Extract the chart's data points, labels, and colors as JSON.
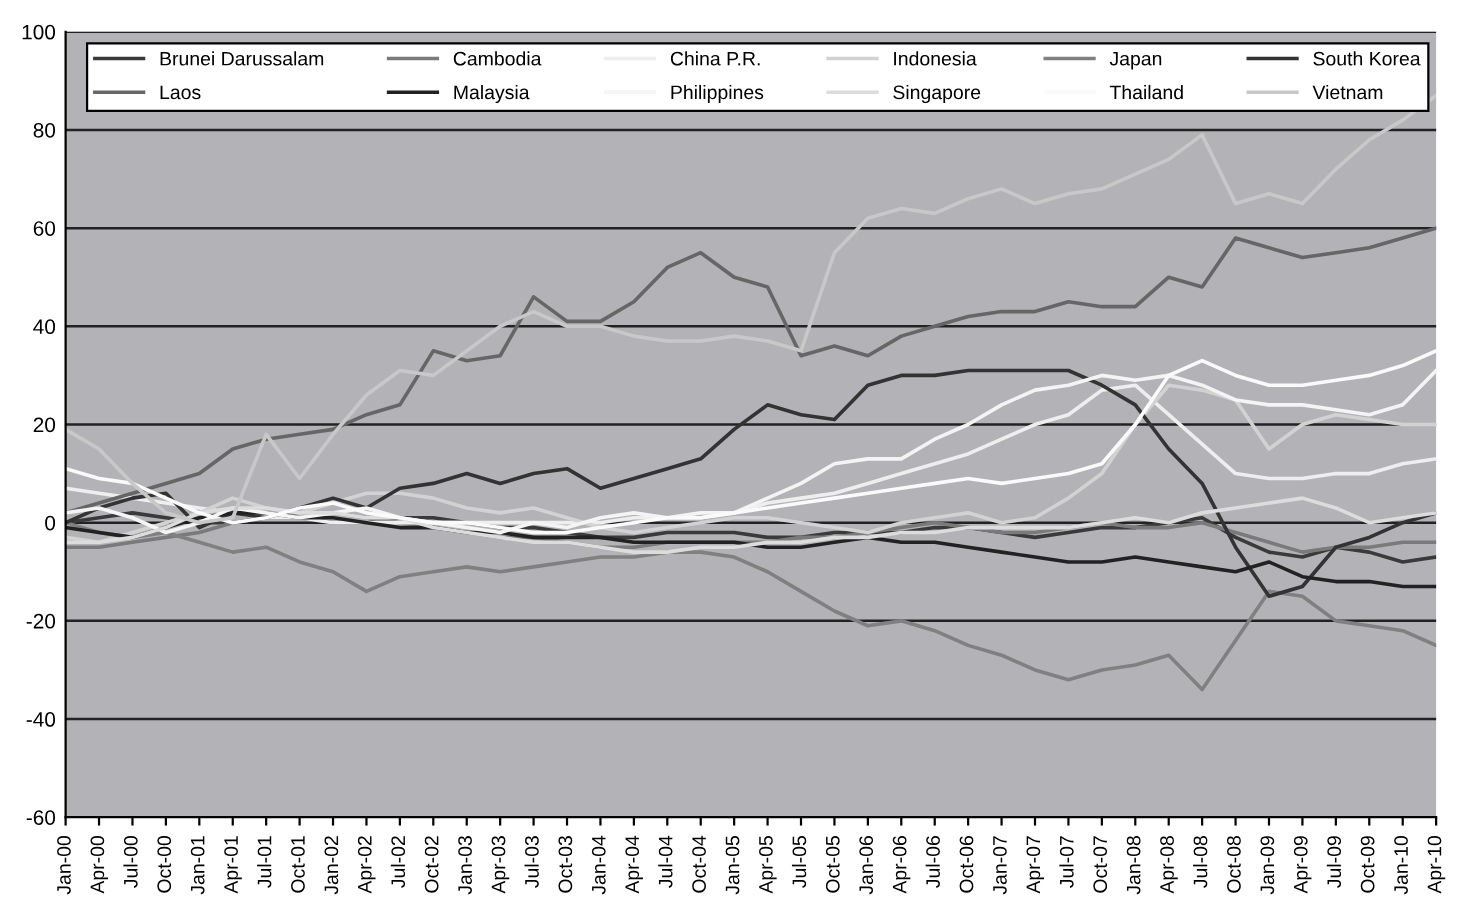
{
  "chart_data": {
    "type": "line",
    "categories": [
      "Jan-00",
      "Apr-00",
      "Jul-00",
      "Oct-00",
      "Jan-01",
      "Apr-01",
      "Jul-01",
      "Oct-01",
      "Jan-02",
      "Apr-02",
      "Jul-02",
      "Oct-02",
      "Jan-03",
      "Apr-03",
      "Jul-03",
      "Oct-03",
      "Jan-04",
      "Apr-04",
      "Jul-04",
      "Oct-04",
      "Jan-05",
      "Apr-05",
      "Jul-05",
      "Oct-05",
      "Jan-06",
      "Apr-06",
      "Jul-06",
      "Oct-06",
      "Jan-07",
      "Apr-07",
      "Jul-07",
      "Oct-07",
      "Jan-08",
      "Apr-08",
      "Jul-08",
      "Oct-08",
      "Jan-09",
      "Apr-09",
      "Jul-09",
      "Oct-09",
      "Jan-10",
      "Apr-10"
    ],
    "series": [
      {
        "name": "Brunei Darussalam",
        "color": "#3a3a3a",
        "values": [
          0,
          1,
          2,
          1,
          0,
          0,
          1,
          1,
          0,
          0,
          1,
          1,
          0,
          -1,
          -1,
          -2,
          -3,
          -3,
          -2,
          -2,
          -2,
          -3,
          -3,
          -2,
          -2,
          -2,
          -1,
          -1,
          -2,
          -3,
          -2,
          -1,
          -1,
          0,
          1,
          -3,
          -6,
          -7,
          -5,
          -6,
          -8,
          -7
        ]
      },
      {
        "name": "Cambodia",
        "color": "#7a7a7a",
        "values": [
          -5,
          -5,
          -4,
          -3,
          -2,
          0,
          1,
          2,
          2,
          1,
          0,
          -1,
          -2,
          -3,
          -3,
          -4,
          -5,
          -5,
          -4,
          -4,
          -4,
          -4,
          -3,
          -3,
          -2,
          -1,
          0,
          -1,
          -2,
          -2,
          -1,
          0,
          -1,
          -1,
          0,
          -2,
          -4,
          -6,
          -5,
          -5,
          -4,
          -4
        ]
      },
      {
        "name": "China P.R.",
        "color": "#eeeeee",
        "values": [
          7,
          6,
          5,
          4,
          3,
          2,
          1,
          1,
          0,
          0,
          0,
          0,
          0,
          0,
          0,
          0,
          0,
          1,
          1,
          1,
          2,
          4,
          5,
          6,
          8,
          10,
          12,
          14,
          17,
          20,
          22,
          27,
          28,
          22,
          16,
          10,
          9,
          9,
          10,
          10,
          12,
          13
        ]
      },
      {
        "name": "Indonesia",
        "color": "#d2d2d2",
        "values": [
          -3,
          -4,
          -2,
          0,
          2,
          5,
          3,
          2,
          4,
          6,
          6,
          5,
          3,
          2,
          3,
          1,
          -1,
          -2,
          -1,
          0,
          1,
          1,
          0,
          -1,
          -2,
          0,
          1,
          2,
          0,
          1,
          5,
          10,
          20,
          28,
          27,
          25,
          15,
          20,
          22,
          21,
          20,
          20
        ]
      },
      {
        "name": "Japan",
        "color": "#808080",
        "values": [
          0,
          -2,
          -3,
          -2,
          -4,
          -6,
          -5,
          -8,
          -10,
          -14,
          -11,
          -10,
          -9,
          -10,
          -9,
          -8,
          -7,
          -7,
          -6,
          -6,
          -7,
          -10,
          -14,
          -18,
          -21,
          -20,
          -22,
          -25,
          -27,
          -30,
          -32,
          -30,
          -29,
          -27,
          -34,
          -24,
          -14,
          -15,
          -20,
          -21,
          -22,
          -25
        ]
      },
      {
        "name": "South Korea",
        "color": "#333333",
        "values": [
          0,
          3,
          5,
          6,
          -1,
          2,
          1,
          3,
          5,
          3,
          7,
          8,
          10,
          8,
          10,
          11,
          7,
          9,
          11,
          13,
          19,
          24,
          22,
          21,
          28,
          30,
          30,
          31,
          31,
          31,
          31,
          28,
          24,
          15,
          8,
          -5,
          -15,
          -13,
          -5,
          -3,
          0,
          2
        ]
      },
      {
        "name": "Laos",
        "color": "#666666",
        "values": [
          2,
          4,
          6,
          8,
          10,
          15,
          17,
          18,
          19,
          22,
          24,
          35,
          33,
          34,
          46,
          41,
          41,
          45,
          52,
          55,
          50,
          48,
          34,
          36,
          34,
          38,
          40,
          42,
          43,
          43,
          45,
          44,
          44,
          50,
          48,
          58,
          56,
          54,
          55,
          56,
          58,
          60
        ]
      },
      {
        "name": "Malaysia",
        "color": "#222222",
        "values": [
          -1,
          -2,
          -3,
          -1,
          1,
          2,
          2,
          1,
          1,
          0,
          -1,
          -1,
          -2,
          -2,
          -3,
          -3,
          -3,
          -4,
          -4,
          -4,
          -4,
          -5,
          -5,
          -4,
          -3,
          -4,
          -4,
          -5,
          -6,
          -7,
          -8,
          -8,
          -7,
          -8,
          -9,
          -10,
          -8,
          -11,
          -12,
          -12,
          -13,
          -13
        ]
      },
      {
        "name": "Philippines",
        "color": "#f4f4f4",
        "values": [
          2,
          3,
          1,
          -2,
          0,
          3,
          2,
          1,
          2,
          3,
          1,
          0,
          -1,
          -2,
          0,
          -1,
          1,
          2,
          1,
          2,
          2,
          5,
          8,
          12,
          13,
          13,
          17,
          20,
          24,
          27,
          28,
          30,
          29,
          30,
          28,
          25,
          24,
          24,
          23,
          22,
          24,
          31
        ]
      },
      {
        "name": "Singapore",
        "color": "#dcdcdc",
        "values": [
          -4,
          -4,
          -3,
          -1,
          2,
          3,
          3,
          2,
          2,
          1,
          1,
          -1,
          -2,
          -3,
          -4,
          -4,
          -5,
          -6,
          -6,
          -5,
          -5,
          -4,
          -4,
          -3,
          -3,
          -2,
          -2,
          -1,
          -1,
          -1,
          -1,
          0,
          1,
          0,
          2,
          3,
          4,
          5,
          3,
          0,
          1,
          2
        ]
      },
      {
        "name": "Thailand",
        "color": "#fafafa",
        "values": [
          11,
          9,
          8,
          5,
          2,
          0,
          1,
          3,
          4,
          2,
          1,
          0,
          0,
          -1,
          -2,
          -2,
          -1,
          0,
          1,
          1,
          2,
          3,
          4,
          5,
          6,
          7,
          8,
          9,
          8,
          9,
          10,
          12,
          20,
          30,
          33,
          30,
          28,
          28,
          29,
          30,
          32,
          35
        ]
      },
      {
        "name": "Vietnam",
        "color": "#c8c8c8",
        "values": [
          19,
          15,
          8,
          2,
          0,
          1,
          18,
          9,
          18,
          26,
          31,
          30,
          35,
          40,
          43,
          40,
          40,
          38,
          37,
          37,
          38,
          37,
          35,
          55,
          62,
          64,
          63,
          66,
          68,
          65,
          67,
          68,
          71,
          74,
          79,
          65,
          67,
          65,
          72,
          78,
          82,
          87
        ]
      }
    ],
    "ylim": [
      -60,
      100
    ],
    "yticks": [
      -60,
      -40,
      -20,
      0,
      20,
      40,
      60,
      80,
      100
    ],
    "grid": "y",
    "legend": "top"
  }
}
